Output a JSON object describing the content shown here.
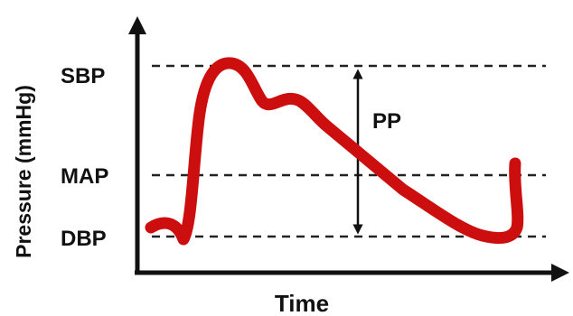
{
  "labels": {
    "y_axis": "Pressure (mmHg)",
    "x_axis": "Time",
    "sbp": "SBP",
    "map": "MAP",
    "dbp": "DBP",
    "pp": "PP"
  },
  "colors": {
    "waveform": "#cc0e0e",
    "axis": "#111111",
    "reference_lines": "#222222"
  }
}
